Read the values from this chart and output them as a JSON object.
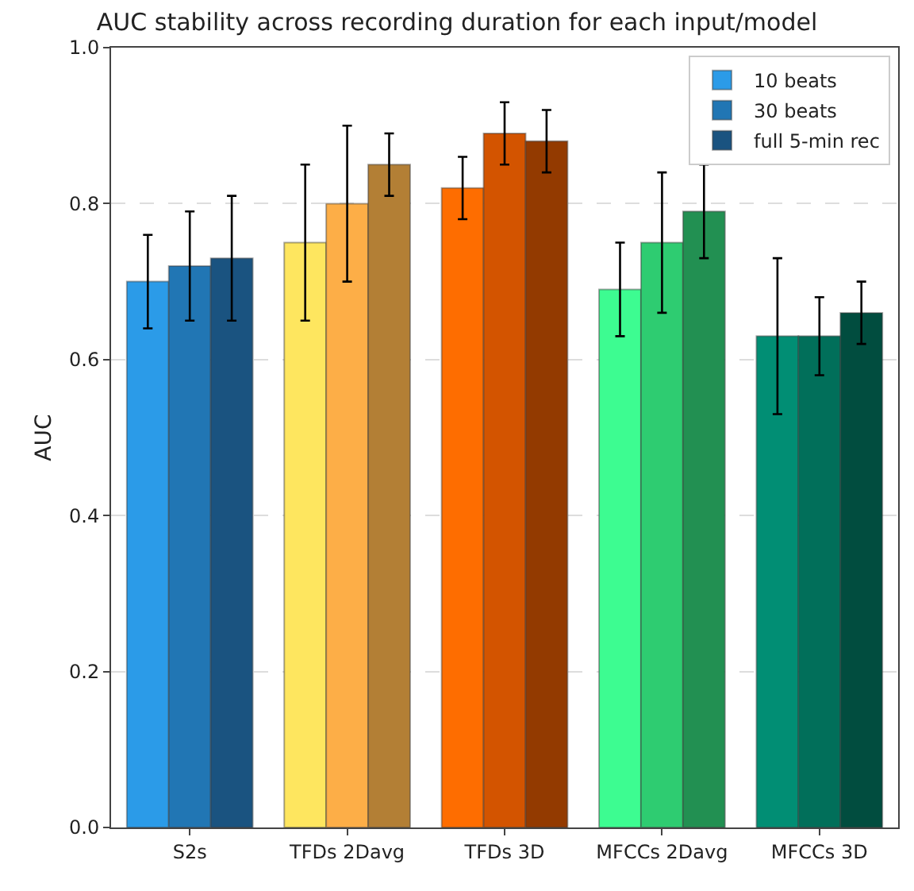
{
  "chart_data": {
    "type": "bar",
    "title": "AUC stability across recording duration for each input/model",
    "ylabel": "AUC",
    "categories": [
      "S2s",
      "TFDs 2Davg",
      "TFDs 3D",
      "MFCCs 2Davg",
      "MFCCs 3D"
    ],
    "series": [
      {
        "name": "10 beats",
        "colors": [
          "#2b9be8",
          "#fee65f",
          "#fe6d00",
          "#3dfc91",
          "#018e74"
        ],
        "values": [
          0.7,
          0.75,
          0.82,
          0.69,
          0.63
        ],
        "errors": [
          [
            0.64,
            0.76
          ],
          [
            0.65,
            0.85
          ],
          [
            0.78,
            0.86
          ],
          [
            0.63,
            0.75
          ],
          [
            0.53,
            0.73
          ]
        ]
      },
      {
        "name": "30 beats",
        "colors": [
          "#2176b4",
          "#fdae47",
          "#d35400",
          "#2ecc71",
          "#016f5a"
        ],
        "values": [
          0.72,
          0.8,
          0.89,
          0.75,
          0.63
        ],
        "errors": [
          [
            0.65,
            0.79
          ],
          [
            0.7,
            0.9
          ],
          [
            0.85,
            0.93
          ],
          [
            0.66,
            0.84
          ],
          [
            0.58,
            0.68
          ]
        ]
      },
      {
        "name": "full 5-min rec",
        "colors": [
          "#1a5380",
          "#b37f35",
          "#933a00",
          "#229052",
          "#014d3f"
        ],
        "values": [
          0.73,
          0.85,
          0.88,
          0.79,
          0.66
        ],
        "errors": [
          [
            0.65,
            0.81
          ],
          [
            0.81,
            0.89
          ],
          [
            0.84,
            0.92
          ],
          [
            0.73,
            0.85
          ],
          [
            0.62,
            0.7
          ]
        ]
      }
    ],
    "ylim": [
      0,
      1
    ],
    "yticks": [
      {
        "value": 0,
        "label": "0.0"
      },
      {
        "value": 0.2,
        "label": "0.2"
      },
      {
        "value": 0.4,
        "label": "0.4"
      },
      {
        "value": 0.6,
        "label": "0.6"
      },
      {
        "value": 0.8,
        "label": "0.8"
      },
      {
        "value": 1,
        "label": "1.0"
      }
    ],
    "grid": "y",
    "legend": "top right"
  }
}
